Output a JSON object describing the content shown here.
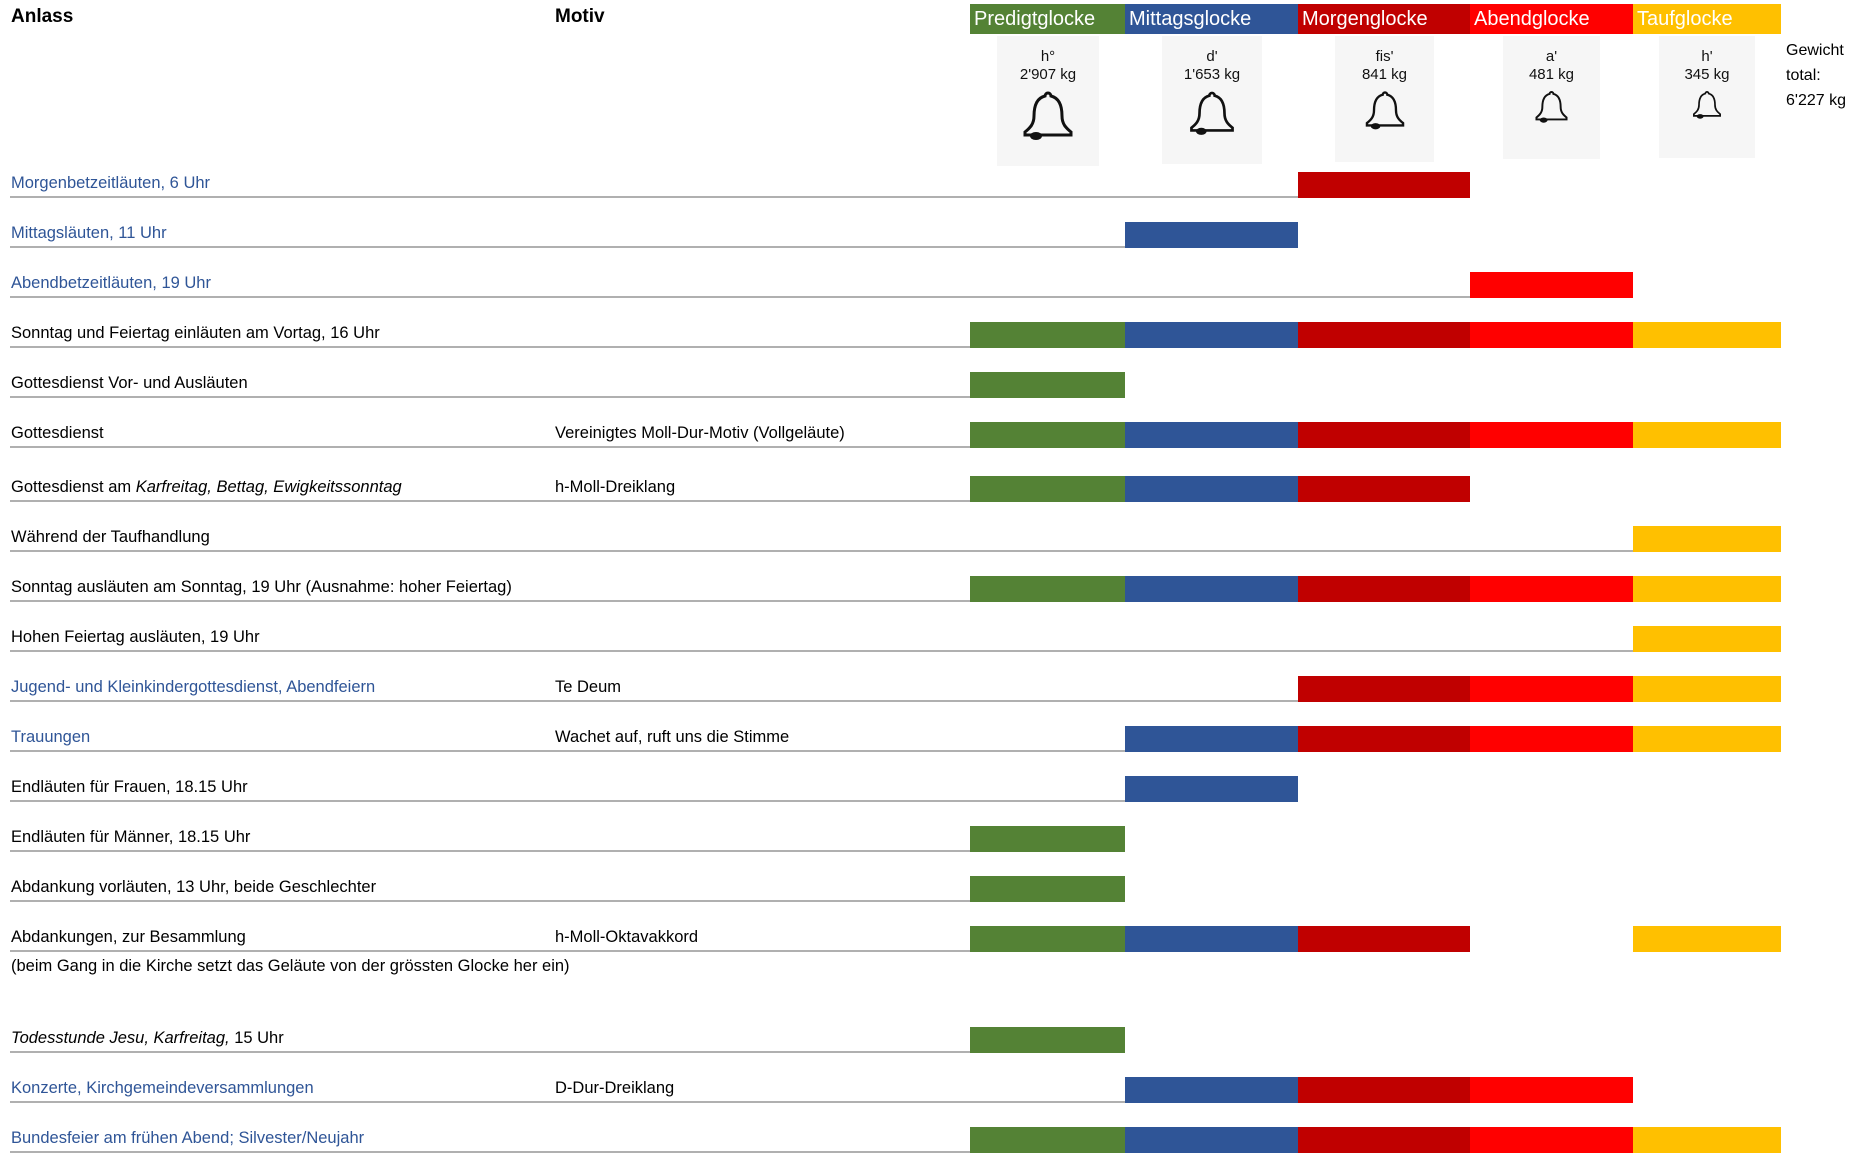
{
  "header": {
    "anlass": "Anlass",
    "motiv": "Motiv",
    "total_label_line1": "Gewicht",
    "total_label_line2": "total:",
    "total_value": "6'227 kg"
  },
  "bells": [
    {
      "name": "Predigtglocke",
      "note": "h°",
      "weight": "2'907 kg",
      "color": "#548235"
    },
    {
      "name": "Mittagsglocke",
      "note": "d'",
      "weight": "1'653 kg",
      "color": "#2f5597"
    },
    {
      "name": "Morgenglocke",
      "note": "fis'",
      "weight": "841 kg",
      "color": "#c00000"
    },
    {
      "name": "Abendglocke",
      "note": "a'",
      "weight": "481 kg",
      "color": "#ff0000"
    },
    {
      "name": "Taufglocke",
      "note": "h'",
      "weight": "345 kg",
      "color": "#ffc000"
    }
  ],
  "rows": [
    {
      "anlass": "Morgenbetzeitläuten, 6 Uhr",
      "blue": true,
      "motiv": "",
      "bells": [
        0,
        0,
        1,
        0,
        0
      ]
    },
    {
      "anlass": "Mittagsläuten, 11 Uhr",
      "blue": true,
      "motiv": "",
      "bells": [
        0,
        1,
        0,
        0,
        0
      ]
    },
    {
      "anlass": "Abendbetzeitläuten, 19 Uhr",
      "blue": true,
      "motiv": "",
      "bells": [
        0,
        0,
        0,
        1,
        0
      ]
    },
    {
      "anlass": "Sonntag und Feiertag einläuten am Vortag, 16 Uhr",
      "blue": false,
      "motiv": "",
      "bells": [
        1,
        1,
        1,
        1,
        1
      ]
    },
    {
      "anlass": "Gottesdienst Vor- und Ausläuten",
      "blue": false,
      "motiv": "",
      "bells": [
        1,
        0,
        0,
        0,
        0
      ]
    },
    {
      "anlass": "Gottesdienst",
      "blue": false,
      "motiv": "Vereinigtes Moll-Dur-Motiv (Vollgeläute)",
      "bells": [
        1,
        1,
        1,
        1,
        1
      ]
    },
    {
      "anlass_prefix": "Gottesdienst am ",
      "anlass_italic": "Karfreitag, Bettag, Ewigkeitssonntag",
      "blue": false,
      "motiv": "h-Moll-Dreiklang",
      "bells": [
        1,
        1,
        1,
        0,
        0
      ]
    },
    {
      "anlass": "Während der Taufhandlung",
      "blue": false,
      "motiv": "",
      "bells": [
        0,
        0,
        0,
        0,
        1
      ]
    },
    {
      "anlass": "Sonntag ausläuten am Sonntag, 19 Uhr (Ausnahme: hoher Feiertag)",
      "blue": false,
      "motiv": "",
      "bells": [
        1,
        1,
        1,
        1,
        1
      ]
    },
    {
      "anlass": "Hohen Feiertag ausläuten, 19 Uhr",
      "blue": false,
      "motiv": "",
      "bells": [
        0,
        0,
        0,
        0,
        1
      ]
    },
    {
      "anlass": "Jugend- und Kleinkindergottesdienst, Abendfeiern",
      "blue": true,
      "motiv": "Te Deum",
      "bells": [
        0,
        0,
        1,
        1,
        1
      ]
    },
    {
      "anlass": "Trauungen",
      "blue": true,
      "motiv": "Wachet auf, ruft uns die Stimme",
      "bells": [
        0,
        1,
        1,
        1,
        1
      ]
    },
    {
      "anlass": "Endläuten für Frauen, 18.15 Uhr",
      "blue": false,
      "motiv": "",
      "bells": [
        0,
        1,
        0,
        0,
        0
      ]
    },
    {
      "anlass": "Endläuten für Männer, 18.15 Uhr",
      "blue": false,
      "motiv": "",
      "bells": [
        1,
        0,
        0,
        0,
        0
      ]
    },
    {
      "anlass": "Abdankung vorläuten, 13 Uhr, beide Geschlechter",
      "blue": false,
      "motiv": "",
      "bells": [
        1,
        0,
        0,
        0,
        0
      ]
    },
    {
      "anlass": "Abdankungen, zur Besammlung",
      "note": "(beim Gang in die Kirche setzt das Geläute von der grössten Glocke her ein)",
      "blue": false,
      "motiv": "h-Moll-Oktavakkord",
      "bells": [
        1,
        1,
        1,
        0,
        1
      ]
    },
    {
      "anlass_italic": "Todesstunde Jesu, Karfreitag,",
      "anlass_suffix": "  15 Uhr",
      "blue": false,
      "motiv": "",
      "bells": [
        1,
        0,
        0,
        0,
        0
      ]
    },
    {
      "anlass": "Konzerte, Kirchgemeindeversammlungen",
      "blue": true,
      "motiv": "D-Dur-Dreiklang",
      "bells": [
        0,
        1,
        1,
        1,
        0
      ]
    },
    {
      "anlass": "Bundesfeier am frühen Abend; Silvester/Neujahr",
      "blue": true,
      "motiv": "",
      "bells": [
        1,
        1,
        1,
        1,
        1
      ]
    }
  ]
}
